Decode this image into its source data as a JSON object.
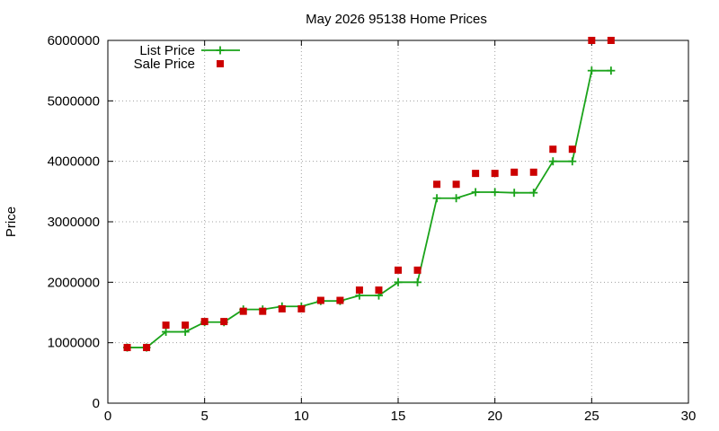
{
  "chart_data": {
    "type": "scatter",
    "title": "May 2026 95138 Home Prices",
    "xlabel": "",
    "ylabel": "Price",
    "xlim": [
      0,
      30
    ],
    "ylim": [
      0,
      6000000
    ],
    "x_ticks": [
      0,
      5,
      10,
      15,
      20,
      25,
      30
    ],
    "y_ticks": [
      0,
      1000000,
      2000000,
      3000000,
      4000000,
      5000000,
      6000000
    ],
    "x_tick_labels": [
      "0",
      "5",
      "10",
      "15",
      "20",
      "25",
      "30"
    ],
    "y_tick_labels": [
      "0",
      "1000000",
      "2000000",
      "3000000",
      "4000000",
      "5000000",
      "6000000"
    ],
    "grid": true,
    "legend_position": "top-left",
    "x": [
      1,
      2,
      3,
      4,
      5,
      6,
      7,
      8,
      9,
      10,
      11,
      12,
      13,
      14,
      15,
      16,
      17,
      18,
      19,
      20,
      21,
      22,
      23,
      24,
      25,
      26
    ],
    "series": [
      {
        "name": "List Price",
        "style": "linespoints",
        "marker": "plus",
        "color": "#1aa31a",
        "values": [
          920000,
          920000,
          1180000,
          1180000,
          1340000,
          1340000,
          1550000,
          1550000,
          1600000,
          1600000,
          1690000,
          1690000,
          1780000,
          1780000,
          2000000,
          2000000,
          3390000,
          3390000,
          3490000,
          3490000,
          3480000,
          3480000,
          4000000,
          4000000,
          5500000,
          5500000
        ]
      },
      {
        "name": "Sale Price",
        "style": "points",
        "marker": "square",
        "color": "#cc0000",
        "values": [
          920000,
          920000,
          1290000,
          1290000,
          1350000,
          1350000,
          1520000,
          1520000,
          1560000,
          1560000,
          1700000,
          1700000,
          1870000,
          1870000,
          2200000,
          2200000,
          3620000,
          3620000,
          3800000,
          3800000,
          3820000,
          3820000,
          4200000,
          4200000,
          6000000,
          6000000
        ]
      }
    ]
  }
}
